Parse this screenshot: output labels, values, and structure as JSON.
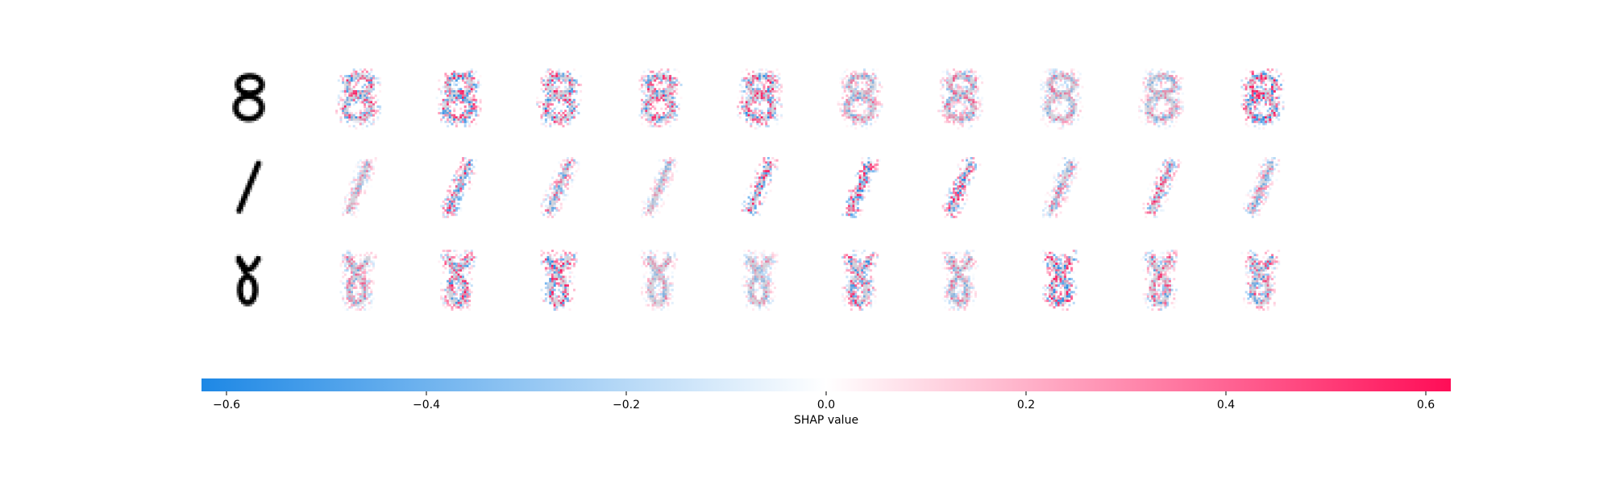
{
  "chart_data": {
    "type": "heatmap",
    "rows": [
      {
        "digit": "8",
        "panels": 10
      },
      {
        "digit": "1",
        "panels": 10
      },
      {
        "digit": "8",
        "panels": 10
      }
    ],
    "colorbar": {
      "label": "SHAP value",
      "range": [
        -0.625,
        0.625
      ],
      "ticks": [
        -0.6,
        -0.4,
        -0.2,
        0.0,
        0.2,
        0.4,
        0.6
      ],
      "tick_labels": [
        "−0.6",
        "−0.4",
        "−0.2",
        "0.0",
        "0.2",
        "0.4",
        "0.6"
      ],
      "negative_color": "#1E88E5",
      "positive_color": "#FF0D57"
    },
    "grid": false
  }
}
